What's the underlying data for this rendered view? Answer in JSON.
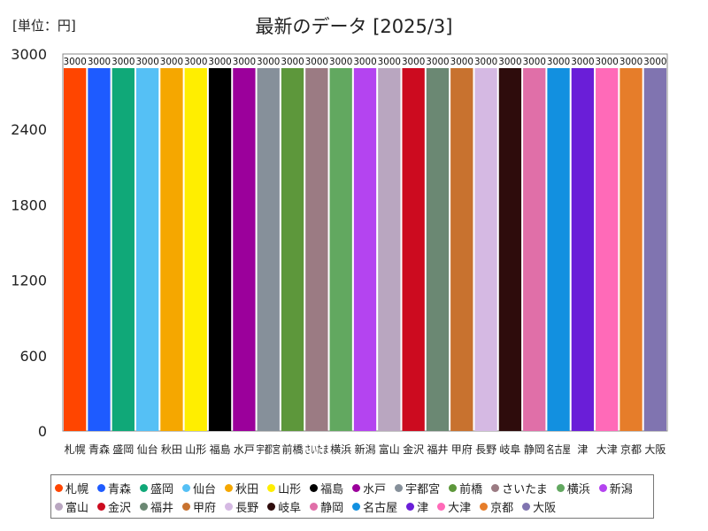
{
  "header": {
    "unit": "[単位：円]",
    "title": "最新のデータ [2025/3]"
  },
  "chart_data": {
    "type": "bar",
    "title": "最新のデータ [2025/3]",
    "xlabel": "",
    "ylabel": "",
    "ylim": [
      0,
      3000
    ],
    "yticks": [
      0,
      600,
      1200,
      1800,
      2400,
      3000
    ],
    "grid": false,
    "legend_position": "bottom",
    "categories": [
      "札幌",
      "青森",
      "盛岡",
      "仙台",
      "秋田",
      "山形",
      "福島",
      "水戸",
      "宇都宮",
      "前橋",
      "さいたま",
      "横浜",
      "新潟",
      "富山",
      "金沢",
      "福井",
      "甲府",
      "長野",
      "岐阜",
      "静岡",
      "名古屋",
      "津",
      "大津",
      "京都",
      "大阪"
    ],
    "tick_labels": [
      "札幌",
      "青森",
      "盛岡",
      "仙台",
      "秋田",
      "山形",
      "福島",
      "水戸",
      "宇都宮",
      "前橋",
      "さいたま",
      "横浜",
      "新潟",
      "富山",
      "金沢",
      "福井",
      "甲府",
      "長野",
      "岐阜",
      "静岡",
      "名古屋",
      "津",
      "大津",
      "京都",
      "大阪"
    ],
    "values": [
      3000,
      3000,
      3000,
      3000,
      3000,
      3000,
      3000,
      3000,
      3000,
      3000,
      3000,
      3000,
      3000,
      3000,
      3000,
      3000,
      3000,
      3000,
      3000,
      3000,
      3000,
      3000,
      3000,
      3000,
      3000
    ],
    "data_labels": [
      "3000",
      "3000",
      "3000",
      "3000",
      "3000",
      "3000",
      "3000",
      "3000",
      "3000",
      "3000",
      "3000",
      "3000",
      "3000",
      "3000",
      "3000",
      "3000",
      "3000",
      "3000",
      "3000",
      "3000",
      "3000",
      "3000",
      "3000",
      "3000",
      "3000"
    ],
    "colors": [
      "#ff4500",
      "#1e5bff",
      "#10a878",
      "#55c0f5",
      "#f5a700",
      "#ffee00",
      "#000000",
      "#9b009b",
      "#86909a",
      "#5d973b",
      "#9b7b83",
      "#62a860",
      "#b444f0",
      "#b9a6c0",
      "#cc0b1f",
      "#6b8873",
      "#c8722f",
      "#d5b9e3",
      "#2e0c0c",
      "#e06fa8",
      "#1290e0",
      "#6a1ed8",
      "#ff6ab8",
      "#e67d2a",
      "#8074b0"
    ]
  }
}
